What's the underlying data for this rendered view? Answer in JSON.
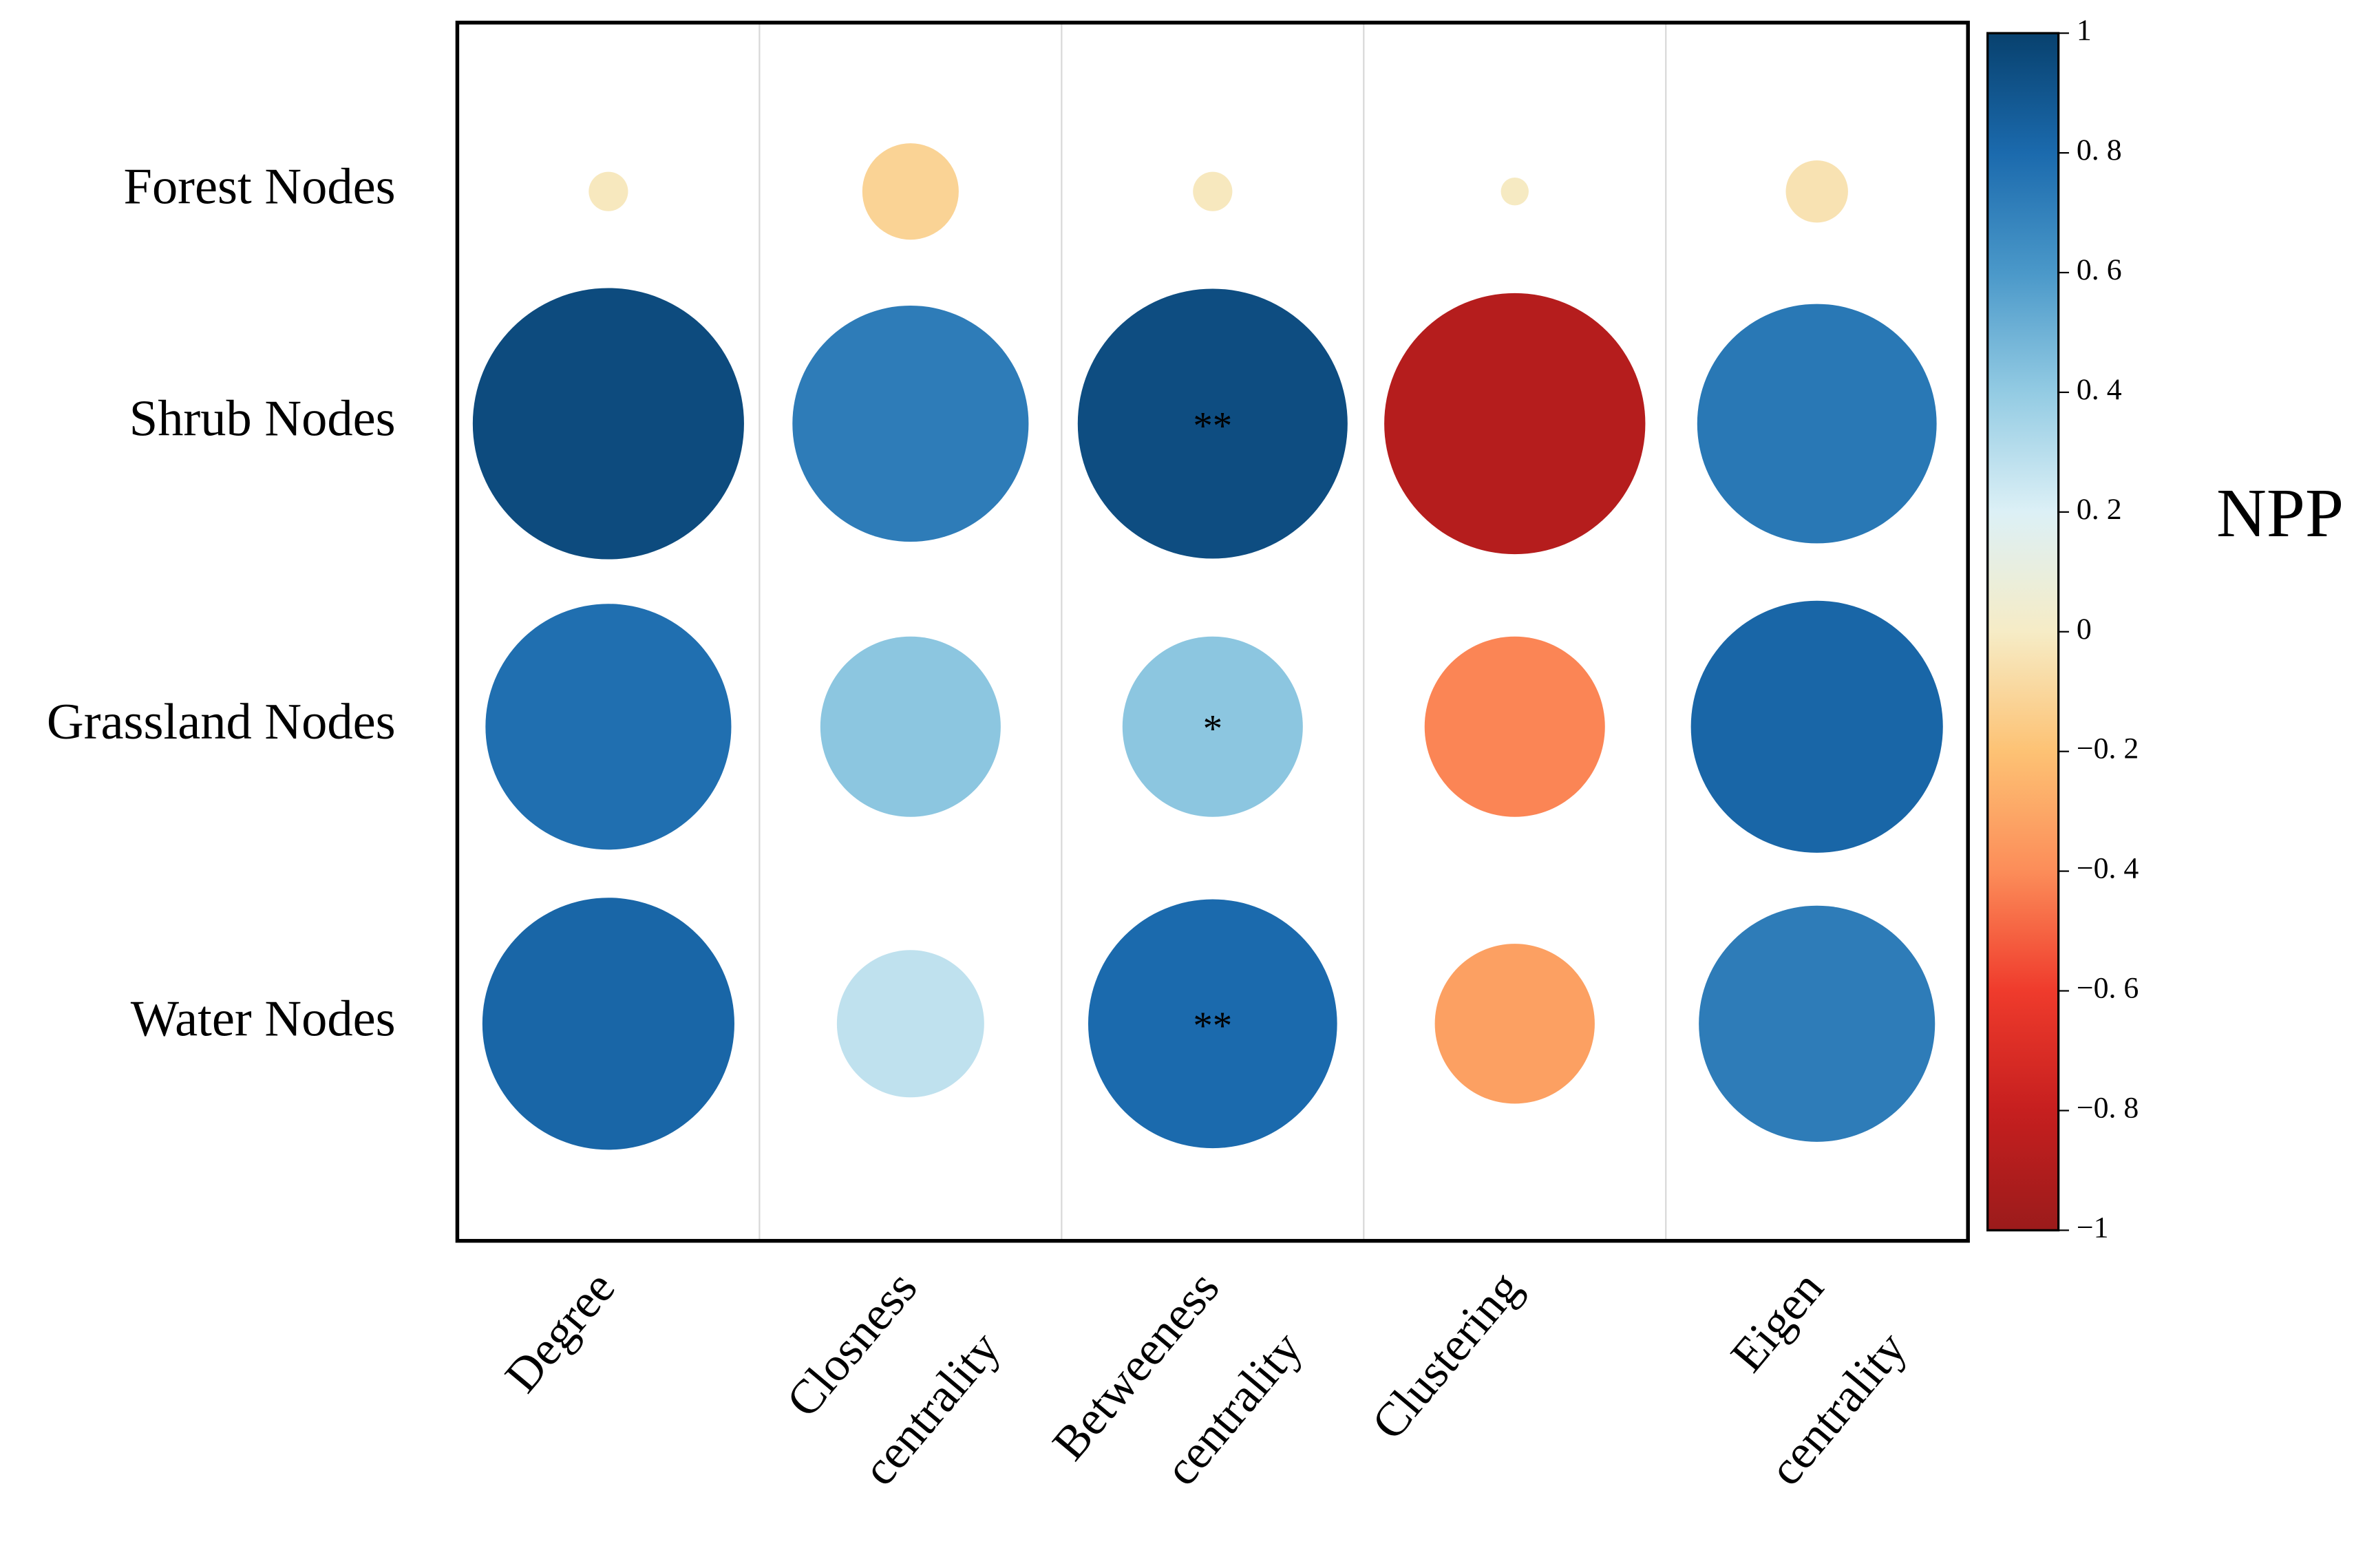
{
  "chart_data": {
    "type": "correlation-bubble",
    "rows": [
      "Forest Nodes",
      "Shrub Nodes",
      "Grassland Nodes",
      "Water Nodes"
    ],
    "columns": [
      [
        "Degree"
      ],
      [
        "Closness",
        "centrality"
      ],
      [
        "Betweeness",
        "centrality"
      ],
      [
        "Clustering"
      ],
      [
        "Eigen",
        "centrality"
      ]
    ],
    "values": [
      [
        -0.02,
        -0.12,
        -0.02,
        -0.01,
        -0.05
      ],
      [
        0.95,
        0.72,
        0.94,
        -0.88,
        0.74
      ],
      [
        0.78,
        0.42,
        0.42,
        -0.42,
        0.82
      ],
      [
        0.82,
        0.28,
        0.8,
        -0.33,
        0.72
      ]
    ],
    "significance": [
      [
        null,
        null,
        null,
        null,
        null
      ],
      [
        null,
        null,
        "**",
        null,
        null
      ],
      [
        null,
        null,
        "*",
        null,
        null
      ],
      [
        null,
        null,
        "**",
        null,
        null
      ]
    ],
    "colorbar_label": "NPP",
    "clim": [
      -1,
      1
    ],
    "colorscale": [
      "#9b1b1b",
      "#c61f1f",
      "#ef3b2c",
      "#fc8d59",
      "#fdc274",
      "#f6ecc6",
      "#dcf0f6",
      "#93cbe3",
      "#4a98c9",
      "#1b6aad",
      "#08416e"
    ],
    "cticks": [
      1,
      {
        "value": 0.8,
        "label": "0. 8"
      },
      {
        "value": 0.6,
        "label": "0. 6"
      },
      {
        "value": 0.4,
        "label": "0. 4"
      },
      {
        "value": 0.2,
        "label": "0. 2"
      },
      0,
      {
        "value": -0.2,
        "label": "−0. 2"
      },
      {
        "value": -0.4,
        "label": "−0. 4"
      },
      {
        "value": -0.6,
        "label": "−0. 6"
      },
      {
        "value": -0.8,
        "label": "−0. 8"
      },
      {
        "value": -1,
        "label": "−1"
      }
    ]
  }
}
